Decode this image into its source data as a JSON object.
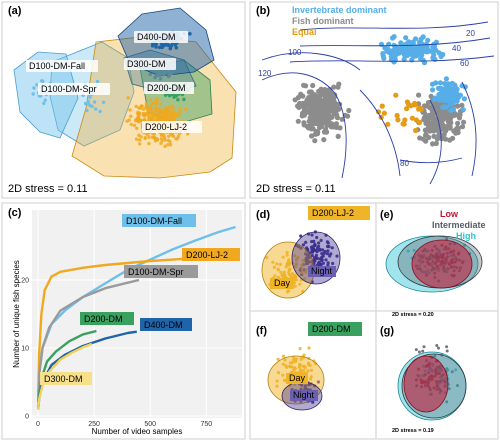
{
  "colors": {
    "D100-DM-Fall": "#6ec0ea",
    "D100-DM-Spr": "#6ec0ea",
    "D400-DM": "#1f64a8",
    "D300-DM": "#5a8a9a",
    "D200-DM": "#3aa060",
    "D200-LJ-2": "#f0a820",
    "invertebrate": "#56aee8",
    "fish": "#8c8c8c",
    "equal": "#e69a16",
    "day": "#f0b429",
    "night": "#3b2e8c",
    "low": "#c8102e",
    "intermediate": "#555e66",
    "high": "#2ec4d6",
    "contour": "#2a3fa8"
  },
  "chart_data": [
    {
      "panel": "(a)",
      "type": "scatter",
      "groups": [
        "D100-DM-Fall",
        "D100-DM-Spr",
        "D400-DM",
        "D300-DM",
        "D200-DM",
        "D200-LJ-2"
      ],
      "stress_label": "2D stress = 0.11"
    },
    {
      "panel": "(b)",
      "type": "scatter",
      "legend": [
        "Invertebrate dominant",
        "Fish dominant",
        "Equal"
      ],
      "contour_labels": [
        "20",
        "40",
        "60",
        "100",
        "120",
        "80"
      ],
      "stress_label": "2D stress = 0.11"
    },
    {
      "panel": "(c)",
      "type": "line",
      "xlabel": "Number of video samples",
      "ylabel": "Number of unique fish species",
      "xlim": [
        0,
        900
      ],
      "ylim": [
        0,
        30
      ],
      "xticks": [
        "0",
        "250",
        "500",
        "750"
      ],
      "yticks": [
        "0",
        "10",
        "20"
      ],
      "series": [
        {
          "name": "D100-DM-Fall",
          "x": [
            1,
            5,
            20,
            60,
            120,
            200,
            300,
            400,
            500,
            600,
            700,
            800,
            880
          ],
          "y": [
            2,
            6,
            10,
            13.5,
            15.5,
            17.5,
            19.5,
            21.5,
            23,
            24.5,
            25.8,
            27,
            27.8
          ]
        },
        {
          "name": "D200-LJ-2",
          "x": [
            1,
            5,
            15,
            30,
            60,
            100,
            200,
            300,
            400,
            500,
            600,
            700,
            750
          ],
          "y": [
            2,
            9,
            15,
            18.5,
            20.5,
            21.2,
            21.8,
            22.2,
            22.5,
            22.8,
            23,
            23.2,
            23.4
          ]
        },
        {
          "name": "D100-DM-Spr",
          "x": [
            1,
            5,
            20,
            50,
            100,
            200,
            300,
            400,
            450
          ],
          "y": [
            2,
            6,
            10,
            13,
            15.5,
            17.5,
            18.8,
            19.6,
            20
          ]
        },
        {
          "name": "D200-DM",
          "x": [
            1,
            5,
            15,
            40,
            80,
            140,
            200,
            260
          ],
          "y": [
            1,
            3,
            5.5,
            8,
            9.5,
            11,
            12,
            12.5
          ]
        },
        {
          "name": "D400-DM",
          "x": [
            1,
            5,
            20,
            60,
            120,
            200,
            300,
            400,
            440
          ],
          "y": [
            1,
            2.5,
            5,
            7.5,
            9,
            10.3,
            11.4,
            12.2,
            12.4
          ]
        },
        {
          "name": "D300-DM",
          "x": [
            1,
            5,
            20,
            50,
            100,
            150,
            200,
            240
          ],
          "y": [
            1,
            2.5,
            4.5,
            6.5,
            8.3,
            9.3,
            10.1,
            10.6
          ]
        }
      ]
    },
    {
      "panel": "(d)",
      "type": "scatter",
      "title": "D200-LJ-2",
      "groups": [
        "Day",
        "Night"
      ]
    },
    {
      "panel": "(e)",
      "type": "scatter",
      "legend": [
        "Low",
        "Intermediate",
        "High"
      ],
      "stress_label": "2D stress = 0.20"
    },
    {
      "panel": "(f)",
      "type": "scatter",
      "title": "D200-DM",
      "groups": [
        "Day",
        "Night"
      ]
    },
    {
      "panel": "(g)",
      "type": "scatter",
      "stress_label": "2D stress = 0.19"
    }
  ]
}
